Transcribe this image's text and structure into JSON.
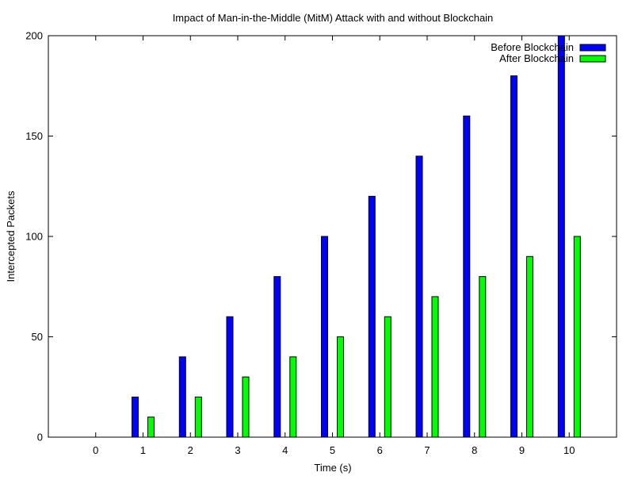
{
  "chart_data": {
    "type": "bar",
    "title": "Impact of Man-in-the-Middle (MitM) Attack with and without Blockchain",
    "xlabel": "Time (s)",
    "ylabel": "Intercepted Packets",
    "categories": [
      "0",
      "1",
      "2",
      "3",
      "4",
      "5",
      "6",
      "7",
      "8",
      "9",
      "10"
    ],
    "x": [
      0,
      1,
      2,
      3,
      4,
      5,
      6,
      7,
      8,
      9,
      10
    ],
    "xlim": [
      -1,
      11
    ],
    "ylim": [
      0,
      200
    ],
    "yticks": [
      0,
      50,
      100,
      150,
      200
    ],
    "grid": false,
    "legend_position": "top-right",
    "series": [
      {
        "name": "Before Blockchain",
        "color": "#0000ff",
        "values": [
          0,
          20,
          40,
          60,
          80,
          100,
          120,
          140,
          160,
          180,
          200
        ]
      },
      {
        "name": "After Blockchain",
        "color": "#00ff00",
        "values": [
          0,
          10,
          20,
          30,
          40,
          50,
          60,
          70,
          80,
          90,
          100
        ]
      }
    ]
  }
}
